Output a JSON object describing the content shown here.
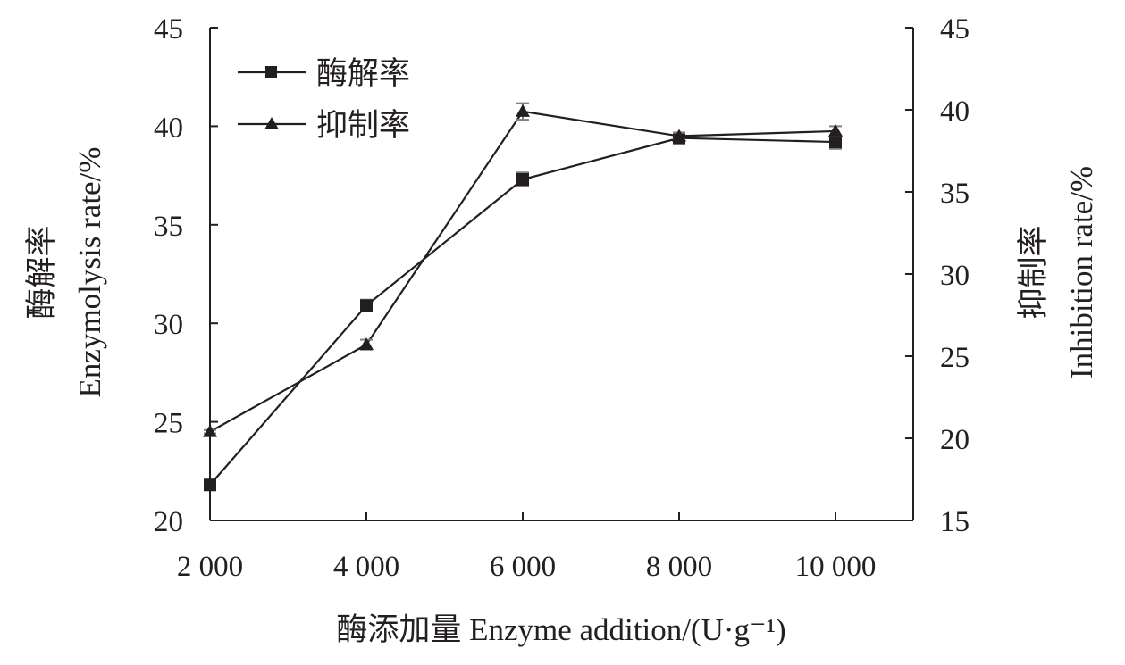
{
  "chart_data": {
    "type": "line",
    "x": [
      2000,
      4000,
      6000,
      8000,
      10000
    ],
    "x_tick_labels": [
      "2 000",
      "4 000",
      "6 000",
      "8 000",
      "10 000"
    ],
    "xlabel": "酶添加量 Enzyme addition/(U·g⁻¹)",
    "ylabel_left": {
      "cn": "酶解率",
      "en": "Enzymolysis rate/%"
    },
    "ylabel_right": {
      "cn": "抑制率",
      "en": "Inhibition rate/%"
    },
    "ylim_left": [
      20,
      45
    ],
    "ylim_right": [
      15,
      45
    ],
    "y_ticks_left": [
      20,
      25,
      30,
      35,
      40,
      45
    ],
    "y_ticks_right": [
      15,
      20,
      25,
      30,
      35,
      40,
      45
    ],
    "grid": false,
    "legend_position": "top-left",
    "series": [
      {
        "name": "酶解率",
        "axis": "left",
        "marker": "square",
        "values": [
          21.8,
          30.9,
          37.3,
          39.4,
          39.2
        ],
        "error": [
          0.2,
          0.3,
          0.35,
          0.15,
          0.35
        ]
      },
      {
        "name": "抑制率",
        "axis": "right",
        "marker": "triangle",
        "values": [
          20.4,
          25.7,
          39.9,
          38.4,
          38.7
        ],
        "error": [
          0.1,
          0.3,
          0.5,
          0.2,
          0.3
        ]
      }
    ],
    "colors": {
      "line": "#231f20",
      "marker": "#231f20",
      "error_bar": "#808080"
    }
  }
}
